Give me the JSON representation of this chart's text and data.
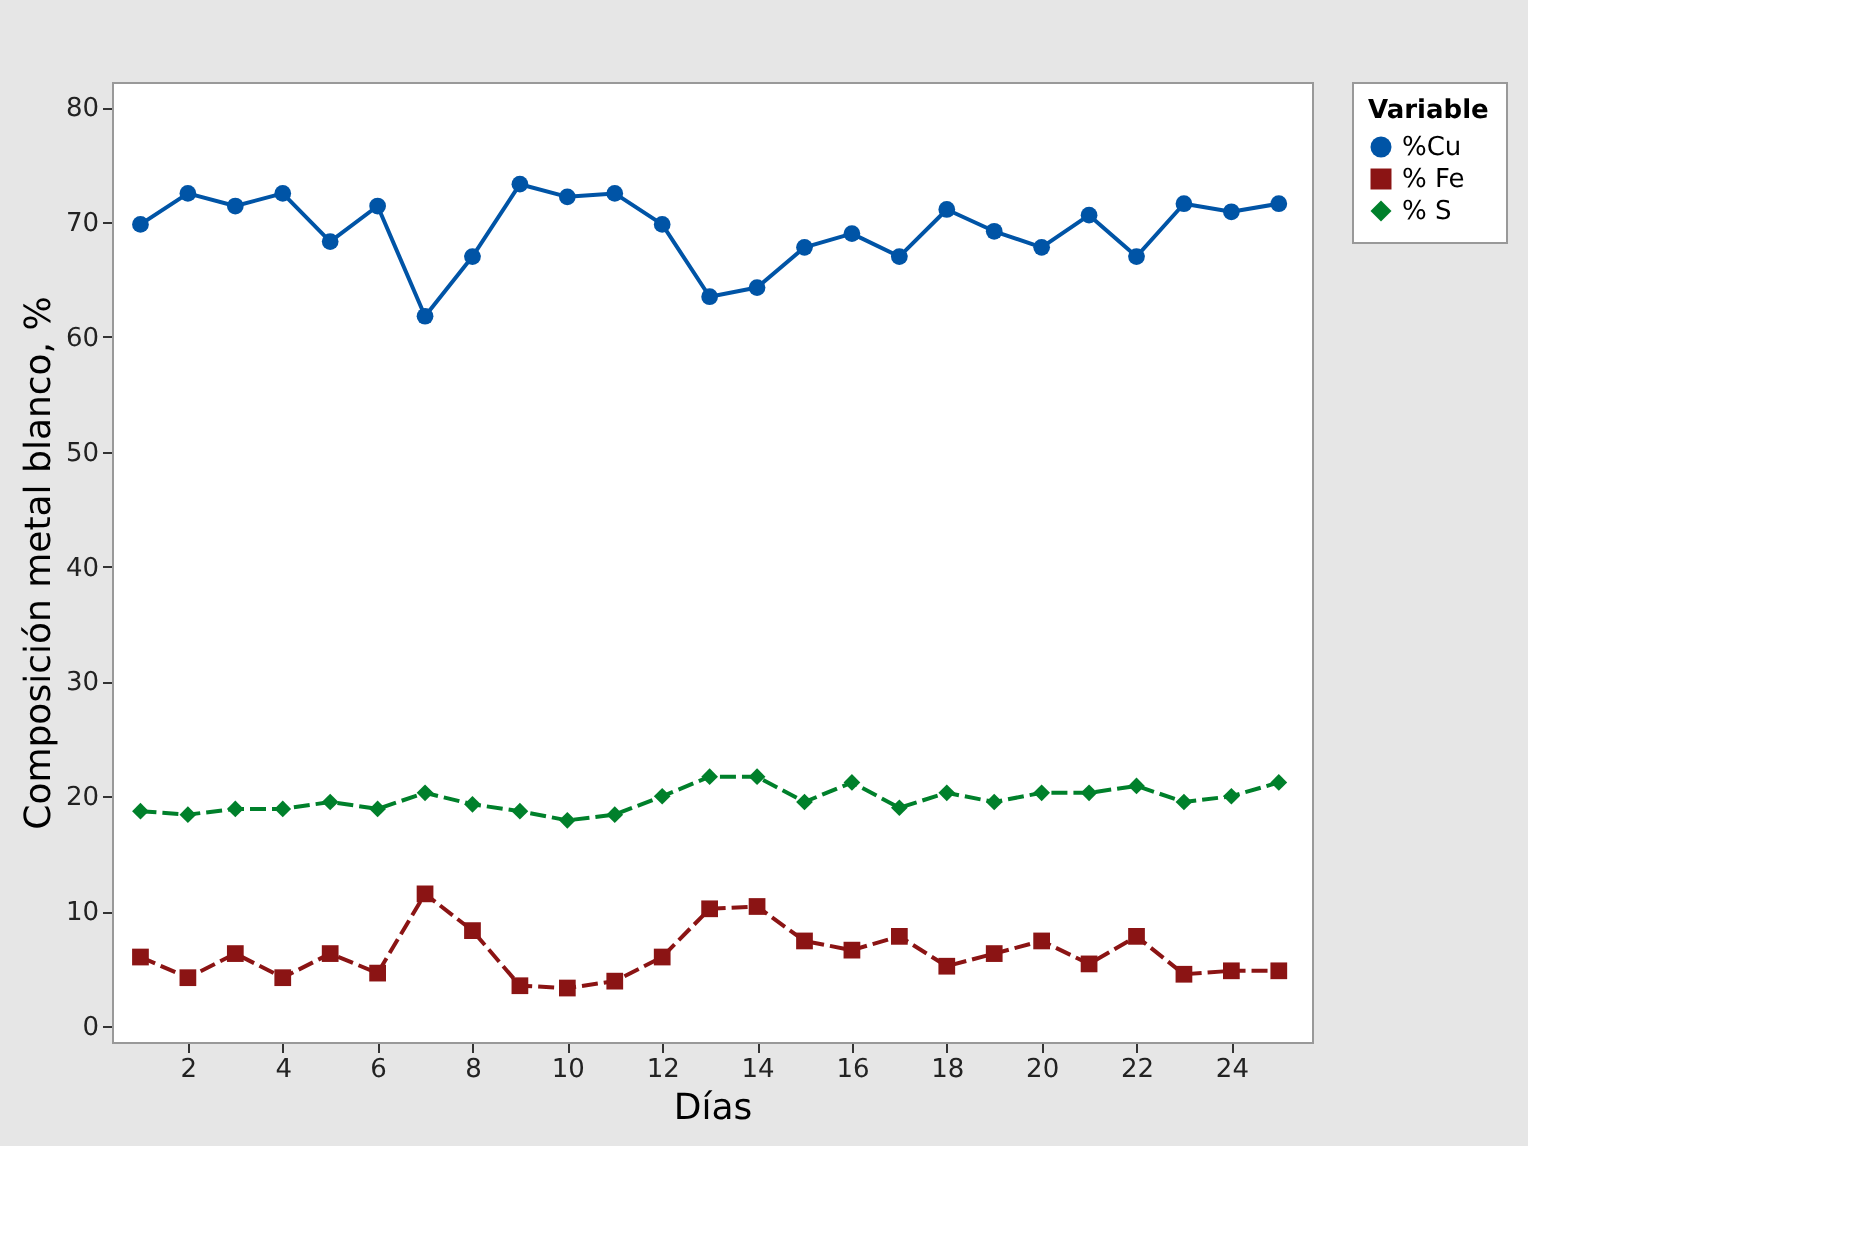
{
  "chart_data": {
    "type": "line",
    "xlabel": "Días",
    "ylabel": "Composición metal blanco, %",
    "legend_title": "Variable",
    "legend": "top right",
    "grid": false,
    "x": [
      1,
      2,
      3,
      4,
      5,
      6,
      7,
      8,
      9,
      10,
      11,
      12,
      13,
      14,
      15,
      16,
      17,
      18,
      19,
      20,
      21,
      22,
      23,
      24,
      25
    ],
    "xlim": [
      0.4,
      25.7
    ],
    "xticks": [
      2,
      4,
      6,
      8,
      10,
      12,
      14,
      16,
      18,
      20,
      22,
      24
    ],
    "ylim": [
      -1.4,
      82.2
    ],
    "yticks": [
      0,
      10,
      20,
      30,
      40,
      50,
      60,
      70,
      80
    ],
    "series": [
      {
        "name": "%Cu",
        "color": "#0054a6",
        "marker": "circle",
        "line_style": "solid",
        "values": [
          69.8,
          72.5,
          71.4,
          72.5,
          68.3,
          71.4,
          61.8,
          67,
          73.3,
          72.2,
          72.5,
          69.8,
          63.5,
          64.3,
          67.8,
          69,
          67,
          71.1,
          69.2,
          67.8,
          70.6,
          67,
          71.6,
          70.9,
          71.6
        ]
      },
      {
        "name": "% Fe",
        "color": "#8b1414",
        "marker": "square",
        "line_style": "dashed",
        "values": [
          6,
          4.2,
          6.3,
          4.2,
          6.3,
          4.6,
          11.5,
          8.3,
          3.5,
          3.3,
          3.9,
          6,
          10.2,
          10.4,
          7.4,
          6.6,
          7.8,
          5.2,
          6.3,
          7.4,
          5.4,
          7.8,
          4.5,
          4.8,
          4.8
        ]
      },
      {
        "name": "% S",
        "color": "#00802b",
        "marker": "diamond",
        "line_style": "dashed",
        "values": [
          18.7,
          18.4,
          18.9,
          18.9,
          19.5,
          18.9,
          20.3,
          19.3,
          18.7,
          17.9,
          18.4,
          20,
          21.7,
          21.7,
          19.5,
          21.2,
          19,
          20.3,
          19.5,
          20.3,
          20.3,
          20.9,
          19.5,
          20,
          21.2
        ]
      }
    ]
  }
}
